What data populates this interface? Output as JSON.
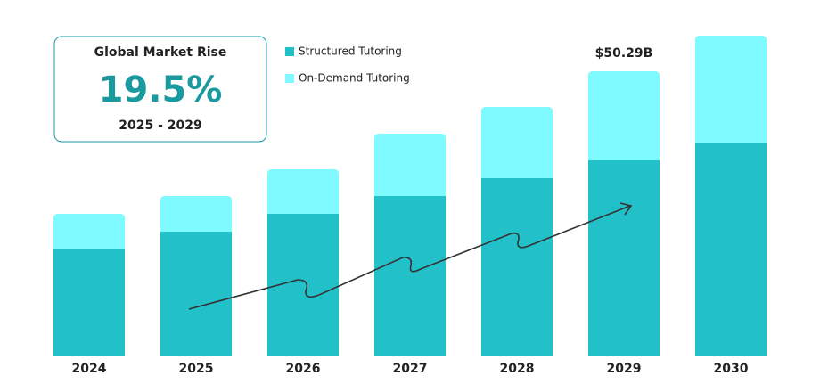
{
  "chart_data": {
    "type": "stacked_bar",
    "categories": [
      "2024",
      "2025",
      "2026",
      "2027",
      "2028",
      "2029",
      "2030"
    ],
    "series": [
      {
        "name": "Structured Tutoring",
        "color": "#22c1c9",
        "values": [
          18.86,
          22.0,
          25.15,
          28.29,
          31.43,
          34.57,
          37.72
        ]
      },
      {
        "name": "On-Demand Tutoring",
        "color": "#7ffbff",
        "values": [
          6.29,
          6.29,
          7.86,
          11.0,
          12.57,
          15.72,
          18.86
        ]
      }
    ],
    "annotations": [
      {
        "label": "$50.29B",
        "category": "2029"
      }
    ],
    "callout": {
      "title": "Global Market Rise",
      "value": "19.5%",
      "period": "2025 - 2029"
    }
  }
}
